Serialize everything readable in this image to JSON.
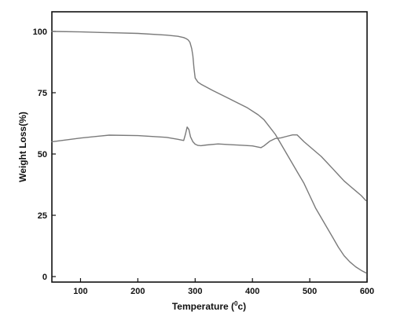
{
  "chart_data": {
    "type": "line",
    "xlabel_main": "Temperature (",
    "xlabel_sup": "0",
    "xlabel_tail": "c)",
    "ylabel": "Weight Loss(%)",
    "xlim": [
      50,
      600
    ],
    "ylim": [
      0,
      100
    ],
    "x_ticks": [
      100,
      200,
      300,
      400,
      500,
      600
    ],
    "y_ticks": [
      0,
      25,
      50,
      75,
      100
    ],
    "grid": false,
    "series_color": "#7a7a7a",
    "series": [
      {
        "x": [
          50,
          100,
          150,
          200,
          250,
          270,
          280,
          285,
          288,
          291,
          294,
          296,
          298,
          300,
          305,
          310,
          330,
          360,
          390,
          410,
          420,
          430,
          440,
          450,
          460,
          470,
          480,
          490,
          500,
          510,
          520,
          530,
          540,
          550,
          560,
          570,
          580,
          590,
          598
        ],
        "y": [
          100,
          99.8,
          99.5,
          99.2,
          98.5,
          98,
          97.5,
          97,
          96.5,
          95.5,
          93,
          90,
          85,
          81,
          79.3,
          78.5,
          76,
          72.5,
          69,
          66,
          64,
          61,
          58,
          54,
          50,
          46,
          42,
          38,
          33,
          28,
          24,
          20,
          16,
          12,
          8.5,
          6,
          4,
          2.5,
          1.5
        ]
      },
      {
        "x": [
          50,
          100,
          150,
          200,
          250,
          270,
          280,
          283,
          286,
          289,
          292,
          296,
          300,
          305,
          310,
          320,
          340,
          360,
          380,
          400,
          415,
          420,
          430,
          440,
          450,
          460,
          470,
          478,
          490,
          500,
          510,
          520,
          530,
          540,
          550,
          560,
          570,
          580,
          590,
          598
        ],
        "y": [
          55,
          56.5,
          57.7,
          57.5,
          56.8,
          56,
          55.5,
          58,
          61,
          60,
          57,
          55,
          54,
          53.5,
          53.4,
          53.7,
          54.1,
          53.8,
          53.6,
          53.3,
          52.6,
          53.3,
          55.2,
          56.3,
          56.6,
          57.2,
          57.8,
          57.8,
          55,
          53,
          51,
          49,
          46.5,
          44,
          41.5,
          39,
          37,
          35,
          33,
          31
        ]
      }
    ]
  }
}
